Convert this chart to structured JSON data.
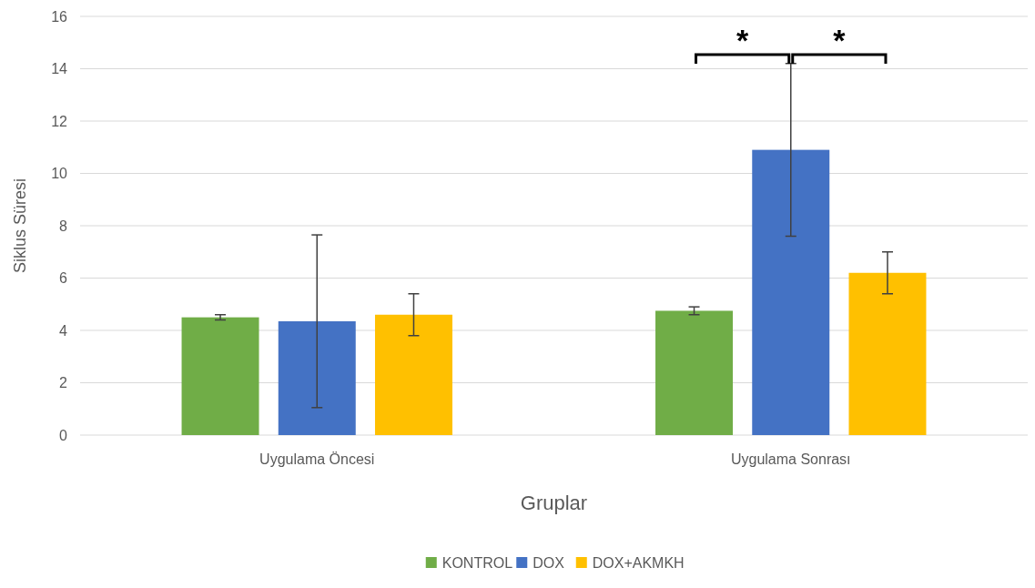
{
  "chart_data": {
    "type": "bar",
    "xlabel": "Gruplar",
    "ylabel": "Siklus Süresi",
    "categories": [
      "Uygulama Öncesi",
      "Uygulama Sonrası"
    ],
    "series": [
      {
        "name": "KONTROL",
        "color": "#70ad47",
        "values": [
          4.5,
          4.75
        ],
        "errors": [
          0.1,
          0.15
        ]
      },
      {
        "name": "DOX",
        "color": "#4472c4",
        "values": [
          4.35,
          10.9
        ],
        "errors": [
          3.3,
          3.3
        ]
      },
      {
        "name": "DOX+AKMKH",
        "color": "#ffc000",
        "values": [
          4.6,
          6.2
        ],
        "errors": [
          0.8,
          0.8
        ]
      }
    ],
    "ylim": [
      0,
      16
    ],
    "yticks": [
      0,
      2,
      4,
      6,
      8,
      10,
      12,
      14,
      16
    ],
    "grid": "y",
    "legend": "bottom",
    "annotations": [
      "*",
      "*"
    ]
  }
}
